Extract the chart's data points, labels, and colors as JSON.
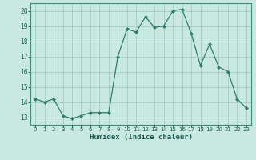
{
  "x": [
    0,
    1,
    2,
    3,
    4,
    5,
    6,
    7,
    8,
    9,
    10,
    11,
    12,
    13,
    14,
    15,
    16,
    17,
    18,
    19,
    20,
    21,
    22,
    23
  ],
  "y": [
    14.2,
    14.0,
    14.2,
    13.1,
    12.9,
    13.1,
    13.3,
    13.3,
    13.3,
    17.0,
    18.8,
    18.6,
    19.6,
    18.9,
    19.0,
    20.0,
    20.1,
    18.5,
    16.4,
    17.8,
    16.3,
    16.0,
    14.2,
    13.6
  ],
  "line_color": "#2e7d6e",
  "marker": "D",
  "marker_size": 2,
  "bg_color": "#c8e8e0",
  "grid_color": "#a0c8be",
  "xlabel": "Humidex (Indice chaleur)",
  "xlabel_color": "#1a5c52",
  "tick_color": "#1a5c52",
  "label_color": "#1a5c52",
  "ylim": [
    12.5,
    20.5
  ],
  "xlim": [
    -0.5,
    23.5
  ],
  "yticks": [
    13,
    14,
    15,
    16,
    17,
    18,
    19,
    20
  ],
  "xticks": [
    0,
    1,
    2,
    3,
    4,
    5,
    6,
    7,
    8,
    9,
    10,
    11,
    12,
    13,
    14,
    15,
    16,
    17,
    18,
    19,
    20,
    21,
    22,
    23
  ],
  "spine_color": "#3a8c7e"
}
